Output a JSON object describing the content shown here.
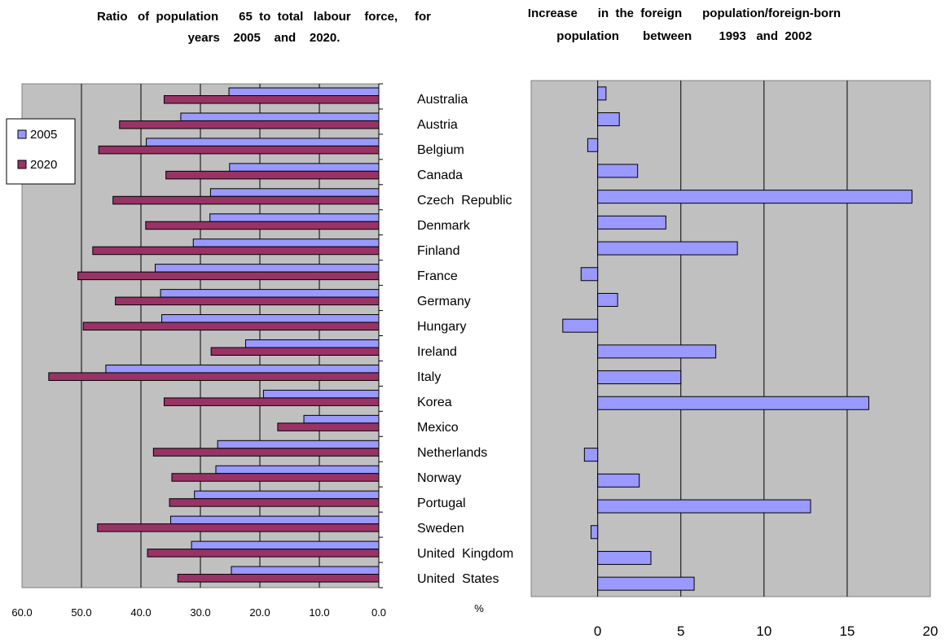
{
  "chart_data": [
    {
      "type": "bar",
      "orientation": "horizontal",
      "title_line1": "Ratio   of  population      65  to  total   labour    force,     for",
      "title_line2": "years    2005    and    2020.",
      "categories": [
        "Australia",
        "Austria",
        "Belgium",
        "Canada",
        "Czech  Republic",
        "Denmark",
        "Finland",
        "France",
        "Germany",
        "Hungary",
        "Ireland",
        "Italy",
        "Korea",
        "Mexico",
        "Netherlands",
        "Norway",
        "Portugal",
        "Sweden",
        "United  Kingdom",
        "United  States"
      ],
      "series": [
        {
          "name": "2005",
          "color": "#9999ff",
          "values": [
            25.2,
            33.3,
            39.1,
            25.1,
            28.3,
            28.4,
            31.2,
            37.6,
            36.7,
            36.5,
            22.4,
            45.9,
            19.4,
            12.6,
            27.1,
            27.4,
            31.0,
            35.0,
            31.5,
            24.8
          ]
        },
        {
          "name": "2020",
          "color": "#993366",
          "values": [
            36.1,
            43.6,
            47.1,
            35.8,
            44.7,
            39.2,
            48.1,
            50.6,
            44.3,
            49.7,
            28.2,
            55.5,
            36.1,
            17.0,
            37.9,
            34.8,
            35.2,
            47.3,
            38.9,
            33.8
          ]
        }
      ],
      "xlim": [
        60,
        0
      ],
      "ticks": [
        "60.0",
        "50.0",
        "40.0",
        "30.0",
        "20.0",
        "10.0",
        "0.0"
      ],
      "grid": true,
      "legend_position": "top-left",
      "plot_background": "#c0c0c0"
    },
    {
      "type": "bar",
      "orientation": "horizontal",
      "title_line1": "Increase      in  the  foreign      population/foreign-born",
      "title_line2": "population       between        1993   and  2002",
      "xlabel": "%",
      "categories": [
        "Australia",
        "Austria",
        "Belgium",
        "Canada",
        "Czech  Republic",
        "Denmark",
        "Finland",
        "France",
        "Germany",
        "Hungary",
        "Ireland",
        "Italy",
        "Korea",
        "Mexico",
        "Netherlands",
        "Norway",
        "Portugal",
        "Sweden",
        "United  Kingdom",
        "United  States"
      ],
      "series": [
        {
          "color": "#9999ff",
          "values": [
            0.5,
            1.3,
            -0.6,
            2.4,
            18.9,
            4.1,
            8.4,
            -1.0,
            1.2,
            -2.1,
            7.1,
            5.0,
            16.3,
            null,
            -0.8,
            2.5,
            12.8,
            -0.4,
            3.2,
            5.8
          ]
        }
      ],
      "xlim": [
        -4,
        20
      ],
      "ticks": [
        "0",
        "5",
        "10",
        "15",
        "20"
      ],
      "grid": true,
      "plot_background": "#c0c0c0"
    }
  ]
}
